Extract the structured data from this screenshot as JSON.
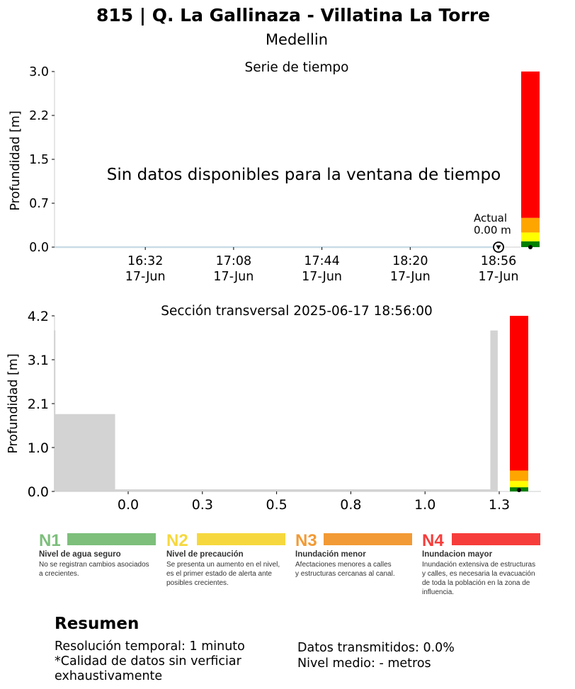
{
  "title": "815 | Q. La Gallinaza - Villatina La Torre",
  "subtitle": "Medellin",
  "colors": {
    "n1": "#7dbf7b",
    "n2": "#f6d83e",
    "n3": "#f29a35",
    "n4": "#f73d3b",
    "gauge_red": "#ff0000",
    "gauge_orange": "#ffa500",
    "gauge_yellow": "#ffff00",
    "gauge_green": "#008000",
    "terrain": "#d3d3d3",
    "series_line": "#c9dce6"
  },
  "chart_data": [
    {
      "type": "line",
      "title": "Serie de tiempo",
      "ylabel": "Profundidad [m]",
      "xlabel": "",
      "ylim": [
        0,
        3.0
      ],
      "yticks": [
        "0.0",
        "0.7",
        "1.5",
        "2.2",
        "3.0"
      ],
      "ytick_values": [
        0,
        0.75,
        1.5,
        2.25,
        3.0
      ],
      "xticks": [
        {
          "time": "16:32",
          "date": "17-Jun"
        },
        {
          "time": "17:08",
          "date": "17-Jun"
        },
        {
          "time": "17:44",
          "date": "17-Jun"
        },
        {
          "time": "18:20",
          "date": "17-Jun"
        },
        {
          "time": "18:56",
          "date": "17-Jun"
        }
      ],
      "xtick_minutes": [
        992,
        1028,
        1064,
        1100,
        1136
      ],
      "xlim_minutes": [
        955,
        1136
      ],
      "message": "Sin datos disponibles para la ventana de tiempo",
      "current": {
        "label": "Actual",
        "value_text": "0.00 m",
        "value": 0.0
      },
      "level_bar": [
        {
          "color": "green",
          "from": 0.0,
          "to": 0.1
        },
        {
          "color": "yellow",
          "from": 0.1,
          "to": 0.25
        },
        {
          "color": "orange",
          "from": 0.25,
          "to": 0.5
        },
        {
          "color": "red",
          "from": 0.5,
          "to": 3.0
        }
      ],
      "grid": false
    },
    {
      "type": "area",
      "title": "Sección transversal 2025-06-17 18:56:00",
      "ylabel": "Profundidad [m]",
      "xlabel": "",
      "ylim": [
        0,
        4.2
      ],
      "yticks": [
        "0.0",
        "1.0",
        "2.1",
        "3.1",
        "4.2"
      ],
      "ytick_values": [
        0,
        1.05,
        2.1,
        3.15,
        4.2
      ],
      "xticks": [
        "0.0",
        "0.3",
        "0.5",
        "0.8",
        "1.0",
        "1.3"
      ],
      "xtick_values": [
        0.0,
        0.25,
        0.5,
        0.75,
        1.0,
        1.25
      ],
      "xlim": [
        -0.25,
        1.25
      ],
      "profile": {
        "x": [
          -0.25,
          -0.25,
          -0.044,
          -0.044,
          1.22,
          1.22,
          1.245,
          1.245
        ],
        "y": [
          3.85,
          1.85,
          1.85,
          0.05,
          0.05,
          3.85,
          3.85,
          0.0
        ]
      },
      "level_bar": [
        {
          "color": "green",
          "from": 0.0,
          "to": 0.1
        },
        {
          "color": "yellow",
          "from": 0.1,
          "to": 0.25
        },
        {
          "color": "orange",
          "from": 0.25,
          "to": 0.5
        },
        {
          "color": "red",
          "from": 0.5,
          "to": 4.2
        }
      ],
      "grid": false
    }
  ],
  "levels": [
    {
      "code": "N1",
      "name": "Nivel de agua seguro",
      "desc": [
        "No se registran cambios asociados",
        "a crecientes."
      ]
    },
    {
      "code": "N2",
      "name": "Nivel de precaución",
      "desc": [
        "Se presenta un aumento en el nivel,",
        "es el primer estado de alerta ante",
        "posibles crecientes."
      ]
    },
    {
      "code": "N3",
      "name": "Inundación menor",
      "desc": [
        "Afectaciones menores a calles",
        "y estructuras cercanas al canal."
      ]
    },
    {
      "code": "N4",
      "name": "Inundacion mayor",
      "desc": [
        "Inundación extensiva de estructuras",
        "y calles, es necesaria la evacuación",
        "de toda la población en la zona de",
        "influencia."
      ]
    }
  ],
  "summary": {
    "title": "Resumen",
    "resolution": "Resolución temporal: 1 minuto",
    "quality_1": "*Calidad de datos sin verficiar",
    "quality_2": "exhaustivamente",
    "transmitted": "Datos transmitidos: 0.0%",
    "mean_level": "Nivel medio: - metros"
  }
}
